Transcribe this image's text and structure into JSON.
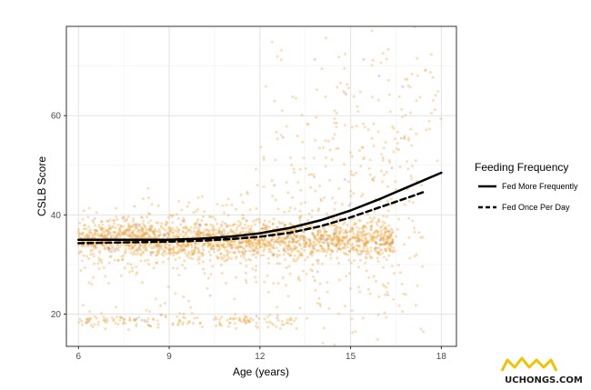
{
  "chart_data": {
    "type": "scatter",
    "title": "",
    "xlabel": "Age (years)",
    "ylabel": "CSLB Score",
    "xlim": [
      5.6,
      18.5
    ],
    "ylim": [
      13.5,
      78
    ],
    "x_ticks": [
      6,
      9,
      12,
      15,
      18
    ],
    "y_ticks": [
      20,
      40,
      60
    ],
    "grid": true,
    "point_colors": {
      "main": "#E8A33A",
      "secondary": "#8C8CD9"
    },
    "point_opacity": 0.35,
    "legend": {
      "title": "Feeding Frequency",
      "placement": "right",
      "entries": [
        {
          "label": "Fed More Frequently",
          "style": "solid"
        },
        {
          "label": "Fed Once Per Day",
          "style": "dashed"
        }
      ]
    },
    "series": [
      {
        "name": "Fed More Frequently",
        "style": "solid",
        "x": [
          6,
          7,
          8,
          9,
          10,
          11,
          12,
          13,
          14,
          15,
          16,
          17,
          18
        ],
        "values": [
          35.0,
          35.0,
          35.0,
          35.0,
          35.2,
          35.6,
          36.3,
          37.4,
          38.9,
          40.9,
          43.3,
          45.9,
          48.5
        ]
      },
      {
        "name": "Fed Once Per Day",
        "style": "dashed",
        "x": [
          6,
          7,
          8,
          9,
          10,
          11,
          12,
          13,
          14,
          15,
          16,
          17,
          17.5
        ],
        "values": [
          34.3,
          34.4,
          34.5,
          34.6,
          34.8,
          35.1,
          35.6,
          36.4,
          37.7,
          39.5,
          41.6,
          43.7,
          44.8
        ]
      }
    ]
  },
  "watermark": {
    "text": "UCHONGS.COM"
  }
}
